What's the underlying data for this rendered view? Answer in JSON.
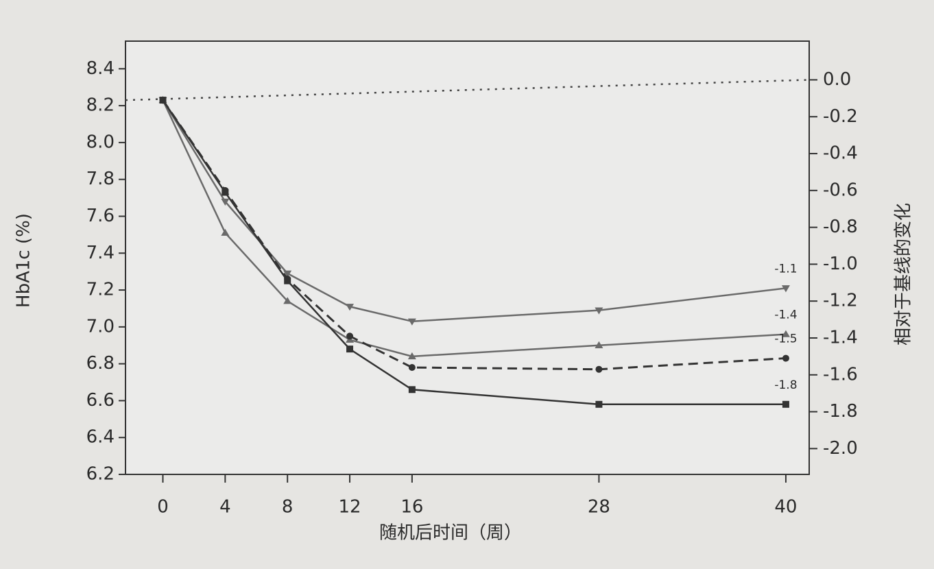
{
  "chart_data": {
    "type": "line",
    "xlabel": "随机后时间（周）",
    "ylabel": "HbA1c (%)",
    "y2label": "相对于基线的变化",
    "x": [
      0,
      4,
      8,
      12,
      16,
      28,
      40
    ],
    "xlim": [
      -2.4,
      41.5
    ],
    "xticks": [
      0,
      4,
      8,
      12,
      16,
      28,
      40
    ],
    "ylim": [
      6.2,
      8.55
    ],
    "yticks": [
      6.2,
      6.4,
      6.6,
      6.8,
      {
        "value": 7,
        "label": "7.0"
      },
      7.2,
      7.4,
      7.6,
      7.8,
      {
        "value": 8,
        "label": "8.0"
      },
      8.2,
      8.4
    ],
    "y2lim": [
      -2.14,
      0.21
    ],
    "y2ticks": [
      {
        "value": 0,
        "label": "0.0"
      },
      -0.2,
      -0.4,
      -0.6,
      -0.8,
      {
        "value": -1,
        "label": "-1.0"
      },
      -1.2,
      -1.4,
      -1.6,
      -1.8,
      {
        "value": -2,
        "label": "-2.0"
      }
    ],
    "series": [
      {
        "color": "#6a6a6a",
        "marker": "triangle-down",
        "dashed": false,
        "values": [
          8.23,
          7.68,
          7.29,
          7.11,
          7.03,
          7.09,
          7.21
        ],
        "end_label": "-1.1"
      },
      {
        "color": "#6a6a6a",
        "marker": "triangle-up",
        "dashed": false,
        "values": [
          8.23,
          7.51,
          7.14,
          6.93,
          6.84,
          6.9,
          6.96
        ],
        "end_label": "-1.4"
      },
      {
        "color": "#333333",
        "marker": "circle",
        "dashed": true,
        "values": [
          8.23,
          7.74,
          7.26,
          6.95,
          6.78,
          6.77,
          6.83
        ],
        "end_label": "-1.5"
      },
      {
        "color": "#333333",
        "marker": "square",
        "dashed": false,
        "values": [
          8.23,
          7.73,
          7.25,
          6.88,
          6.66,
          6.58,
          6.58
        ],
        "end_label": "-1.8"
      }
    ]
  }
}
